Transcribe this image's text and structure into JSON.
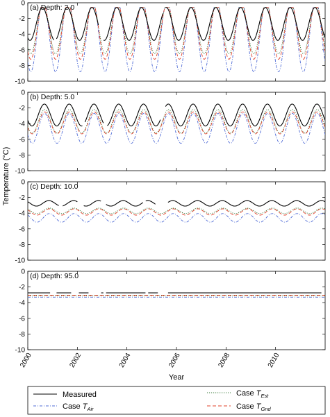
{
  "chart_data": {
    "type": "line",
    "ylabel": "Temperature (°C)",
    "ylabel_unit": "°C",
    "xlabel": "Year",
    "xlim": [
      2000,
      2012
    ],
    "x_ticks": [
      "2000",
      "2002",
      "2004",
      "2006",
      "2008",
      "2010"
    ],
    "ylim": [
      -10,
      0
    ],
    "panels": [
      {
        "title": "(a) Depth: 2.0",
        "y_ticks": [
          "0",
          "-2",
          "-4",
          "-6",
          "-8",
          "-10"
        ],
        "series": [
          {
            "key": "measured",
            "mean": -2.7,
            "amp": 2.1,
            "phase": 0.04,
            "spike": -3.2,
            "flat": -0.6,
            "gaps": [
              [
                2001.05,
                2001.15
              ],
              [
                2002.85,
                2003.05
              ],
              [
                2005.45,
                2005.55
              ]
            ]
          },
          {
            "key": "t_est",
            "mean": -3.3,
            "amp": 3.2,
            "phase": 0.07,
            "spike": -3.5,
            "flat": -0.6,
            "gaps": []
          },
          {
            "key": "t_air",
            "mean": -4.2,
            "amp": 4.6,
            "phase": 0.07,
            "spike": -4.5,
            "flat": -0.6,
            "gaps": []
          },
          {
            "key": "t_gnd",
            "mean": -3.6,
            "amp": 3.6,
            "phase": 0.07,
            "spike": -3.9,
            "flat": -0.6,
            "gaps": []
          }
        ]
      },
      {
        "title": "(b) Depth: 5.0",
        "y_ticks": [
          "0",
          "-2",
          "-4",
          "-6",
          "-8",
          "-10"
        ],
        "series": [
          {
            "key": "measured",
            "mean": -2.9,
            "amp": 1.4,
            "phase": 0.12,
            "gaps": [
              [
                2002.2,
                2002.3
              ],
              [
                2003.05,
                2003.2
              ],
              [
                2005.35,
                2005.55
              ]
            ]
          },
          {
            "key": "t_est",
            "mean": -3.7,
            "amp": 1.5,
            "phase": 0.13,
            "gaps": []
          },
          {
            "key": "t_air",
            "mean": -4.6,
            "amp": 1.9,
            "phase": 0.13,
            "gaps": []
          },
          {
            "key": "t_gnd",
            "mean": -3.9,
            "amp": 1.4,
            "phase": 0.13,
            "gaps": []
          }
        ]
      },
      {
        "title": "(c) Depth: 10.0",
        "y_ticks": [
          "0",
          "-2",
          "-4",
          "-6",
          "-8",
          "-10"
        ],
        "series": [
          {
            "key": "measured",
            "mean": -2.75,
            "amp": 0.35,
            "phase": 0.3,
            "gaps": [
              [
                2001.25,
                2001.4
              ],
              [
                2002.0,
                2002.25
              ],
              [
                2002.95,
                2003.15
              ],
              [
                2004.65,
                2004.75
              ],
              [
                2005.15,
                2005.65
              ]
            ]
          },
          {
            "key": "t_est",
            "mean": -3.7,
            "amp": 0.35,
            "phase": 0.32,
            "gaps": []
          },
          {
            "key": "t_air",
            "mean": -4.6,
            "amp": 0.55,
            "phase": 0.32,
            "gaps": []
          },
          {
            "key": "t_gnd",
            "mean": -3.85,
            "amp": 0.4,
            "phase": 0.32,
            "gaps": []
          }
        ]
      },
      {
        "title": "(d) Depth: 95.0",
        "y_ticks": [
          "0",
          "-2",
          "-4",
          "-6",
          "-8",
          "-10"
        ],
        "series": [
          {
            "key": "measured",
            "mean": -2.75,
            "amp": 0.0,
            "phase": 0.0,
            "gaps": [
              [
                2000.9,
                2001.15
              ],
              [
                2001.75,
                2002.05
              ],
              [
                2002.45,
                2002.95
              ],
              [
                2003.05,
                2003.15
              ],
              [
                2004.75,
                2004.85
              ],
              [
                2005.25,
                2005.65
              ],
              [
                2011.85,
                2012.0
              ]
            ]
          },
          {
            "key": "t_est",
            "mean": -3.15,
            "amp": 0.0,
            "phase": 0.0,
            "gaps": []
          },
          {
            "key": "t_air",
            "mean": -3.3,
            "amp": 0.0,
            "phase": 0.0,
            "gaps": []
          },
          {
            "key": "t_gnd",
            "mean": -3.05,
            "amp": 0.0,
            "phase": 0.0,
            "gaps": []
          }
        ]
      }
    ],
    "legend": {
      "placement": "bottom",
      "entries": [
        {
          "key": "measured",
          "label": "Measured",
          "sub": "",
          "color": "#000000",
          "dash": ""
        },
        {
          "key": "t_est",
          "label": "Case T",
          "sub": "Est",
          "color": "#3a7a3a",
          "dash": "1.2 1.8"
        },
        {
          "key": "t_air",
          "label": "Case T",
          "sub": "Air",
          "color": "#4f6bd6",
          "dash": "4 2 1 2"
        },
        {
          "key": "t_gnd",
          "label": "Case T",
          "sub": "Gnd",
          "color": "#e0402a",
          "dash": "5 3"
        }
      ]
    }
  }
}
